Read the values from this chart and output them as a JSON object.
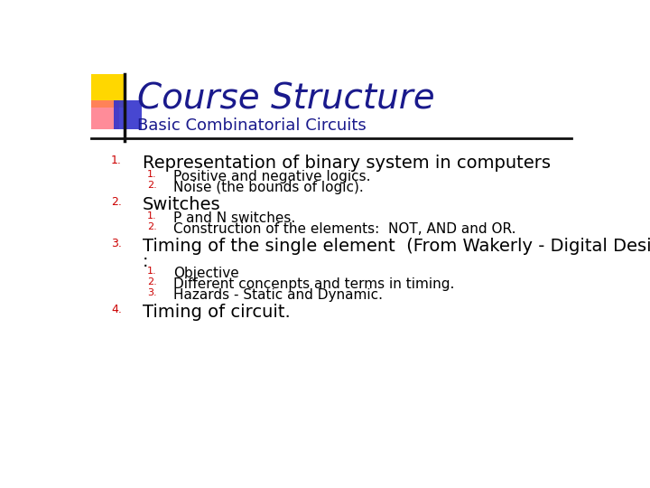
{
  "title": "Course Structure",
  "subtitle": "Basic Combinatorial Circuits",
  "title_color": "#1a1a8c",
  "subtitle_color": "#1a1a8c",
  "background_color": "#ffffff",
  "line_color": "#111111",
  "accent_yellow": "#FFD700",
  "accent_red": "#FF6677",
  "accent_blue": "#3333CC",
  "items": [
    {
      "num": "1.",
      "text": "Representation of binary system in computers",
      "level": 1
    },
    {
      "num": "1.",
      "text": "Positive and negative logics.",
      "level": 2
    },
    {
      "num": "2.",
      "text": "Noise (the bounds of logic).",
      "level": 2
    },
    {
      "num": "2.",
      "text": "Switches",
      "level": 1
    },
    {
      "num": "1.",
      "text": "P and N switches.",
      "level": 2
    },
    {
      "num": "2.",
      "text": "Construction of the elements:  NOT, AND and OR.",
      "level": 2
    },
    {
      "num": "3.",
      "text": "Timing of the single element  (From Wakerly - Digital Design)\n:",
      "level": 1
    },
    {
      "num": "1.",
      "text": "Objective",
      "level": 2
    },
    {
      "num": "2.",
      "text": "Different concenpts and terms in timing.",
      "level": 2
    },
    {
      "num": "3.",
      "text": "Hazards - Static and Dynamic.",
      "level": 2
    },
    {
      "num": "4.",
      "text": "Timing of circuit.",
      "level": 1
    }
  ]
}
